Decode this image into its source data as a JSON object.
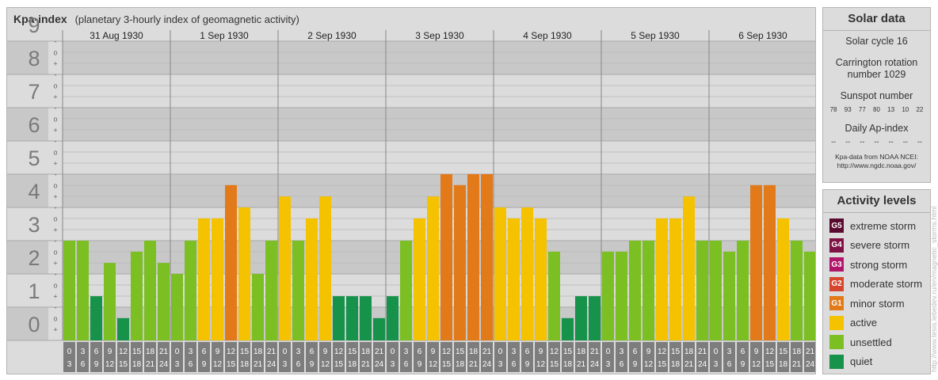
{
  "header": {
    "title": "Kpa-index",
    "subtitle": "(planetary 3-hourly index of geomagnetic activity)"
  },
  "chart_data": {
    "type": "bar",
    "ylim": [
      0,
      9
    ],
    "y_ticks": [
      "0",
      "1",
      "2",
      "3",
      "4",
      "5",
      "6",
      "7",
      "8",
      "9"
    ],
    "sub_tick_labels": [
      "+",
      "o",
      "-"
    ],
    "days": [
      "31 Aug 1930",
      "1 Sep 1930",
      "2 Sep 1930",
      "3 Sep 1930",
      "4 Sep 1930",
      "5 Sep 1930",
      "6 Sep 1930"
    ],
    "interval_labels": [
      [
        "0",
        "3"
      ],
      [
        "3",
        "6"
      ],
      [
        "6",
        "9"
      ],
      [
        "9",
        "12"
      ],
      [
        "12",
        "15"
      ],
      [
        "15",
        "18"
      ],
      [
        "18",
        "21"
      ],
      [
        "21",
        "24"
      ]
    ],
    "series": [
      {
        "values": [
          3.0,
          3.0,
          1.33,
          2.33,
          0.67,
          2.67,
          3.0,
          2.33,
          2.0,
          3.0,
          3.67,
          3.67,
          4.67,
          4.0,
          2.0,
          3.0,
          4.33,
          3.0,
          3.67,
          4.33,
          1.33,
          1.33,
          1.33,
          0.67,
          1.33,
          3.0,
          3.67,
          4.33,
          5.0,
          4.67,
          5.0,
          5.0,
          4.0,
          3.67,
          4.0,
          3.67,
          2.67,
          0.67,
          1.33,
          1.33,
          2.67,
          2.67,
          3.0,
          3.0,
          3.67,
          3.67,
          4.33,
          3.0,
          3.0,
          2.67,
          3.0,
          4.67,
          4.67,
          3.67,
          3.0,
          2.67
        ]
      }
    ]
  },
  "solar": {
    "title": "Solar data",
    "cycle": "Solar cycle 16",
    "carrington_line1": "Carrington rotation",
    "carrington_line2": "number 1029",
    "sunspot_title": "Sunspot number",
    "sunspots": [
      "78",
      "93",
      "77",
      "80",
      "13",
      "10",
      "22"
    ],
    "ap_title": "Daily Ap-index",
    "ap": [
      "--",
      "--",
      "--",
      "--",
      "--",
      "--",
      "--"
    ],
    "note_line1": "Kpa-data from NOAA NCEI:",
    "note_line2": "http://www.ngdc.noaa.gov/"
  },
  "activity": {
    "title": "Activity levels",
    "items": [
      {
        "code": "G5",
        "label": "extreme storm",
        "color": "#5a0a2e"
      },
      {
        "code": "G4",
        "label": "severe storm",
        "color": "#7f1244"
      },
      {
        "code": "G3",
        "label": "strong storm",
        "color": "#b0156a"
      },
      {
        "code": "G2",
        "label": "moderate storm",
        "color": "#d6452d"
      },
      {
        "code": "G1",
        "label": "minor storm",
        "color": "#e27a1a"
      },
      {
        "code": "",
        "label": "active",
        "color": "#f5c200"
      },
      {
        "code": "",
        "label": "unsettled",
        "color": "#7bbf22"
      },
      {
        "code": "",
        "label": "quiet",
        "color": "#16924a"
      }
    ]
  },
  "watermark": "http://www.tesis.lebedev.ru/en/magnetic_storms.html"
}
